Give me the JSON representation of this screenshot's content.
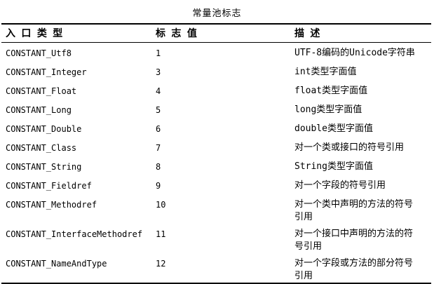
{
  "page_title": "常量池标志",
  "chart_data": {
    "type": "table",
    "title": "常量池标志",
    "columns": [
      "入 口 类 型",
      "标 志 值",
      "描 述"
    ],
    "rows": [
      {
        "type": "CONSTANT_Utf8",
        "tag": "1",
        "desc": "UTF-8编码的Unicode字符串"
      },
      {
        "type": "CONSTANT_Integer",
        "tag": "3",
        "desc": "int类型字面值"
      },
      {
        "type": "CONSTANT_Float",
        "tag": "4",
        "desc": "float类型字面值"
      },
      {
        "type": "CONSTANT_Long",
        "tag": "5",
        "desc": "long类型字面值"
      },
      {
        "type": "CONSTANT_Double",
        "tag": "6",
        "desc": "double类型字面值"
      },
      {
        "type": "CONSTANT_Class",
        "tag": "7",
        "desc": "对一个类或接口的符号引用"
      },
      {
        "type": "CONSTANT_String",
        "tag": "8",
        "desc": "String类型字面值"
      },
      {
        "type": "CONSTANT_Fieldref",
        "tag": "9",
        "desc": "对一个字段的符号引用"
      },
      {
        "type": "CONSTANT_Methodref",
        "tag": "10",
        "desc": "对一个类中声明的方法的符号\n引用"
      },
      {
        "type": "CONSTANT_InterfaceMethodref",
        "tag": "11",
        "desc": "对一个接口中声明的方法的符\n号引用"
      },
      {
        "type": "CONSTANT_NameAndType",
        "tag": "12",
        "desc": "对一个字段或方法的部分符号\n引用"
      }
    ]
  },
  "colors": {
    "background": "#ffffff",
    "text": "#000000",
    "rule": "#000000"
  }
}
